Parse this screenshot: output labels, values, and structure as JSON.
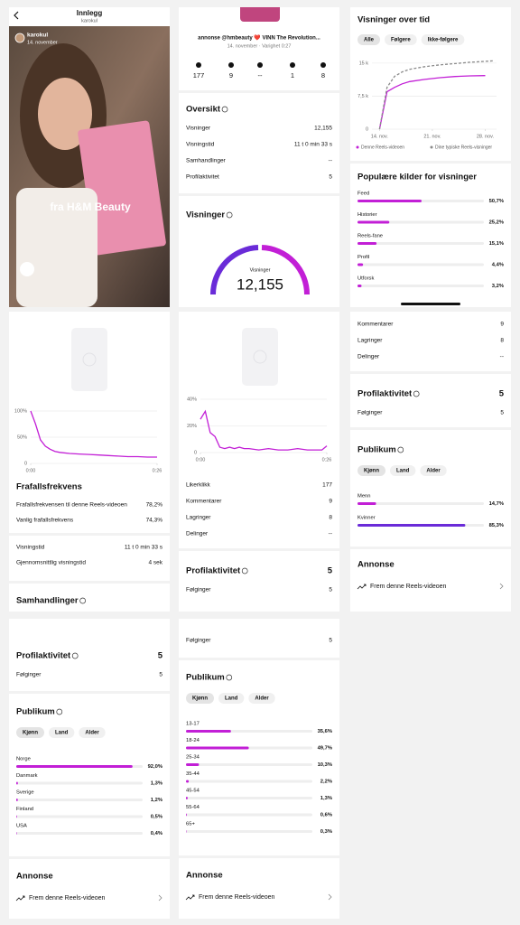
{
  "post": {
    "title": "Innlegg",
    "subtitle": "karokul",
    "user": "karokul",
    "date": "14. november",
    "overlay": "fra H&M Beauty"
  },
  "summary": {
    "caption": "annonse @hmbeauty ❤️ VINN The Revolution...",
    "meta": "14. november · Varighet 0:27",
    "stats": [
      "177",
      "9",
      "--",
      "1",
      "8"
    ],
    "overview_title": "Oversikt",
    "overview_rows": [
      {
        "label": "Visninger",
        "value": "12,155"
      },
      {
        "label": "Visningstid",
        "value": "11 t 0 min 33 s"
      },
      {
        "label": "Samhandlinger",
        "value": "--"
      },
      {
        "label": "Profilaktivitet",
        "value": "5"
      }
    ],
    "views_title": "Visninger",
    "donut_label": "Visninger",
    "donut_value": "12,155"
  },
  "views_over_time": {
    "title": "Visninger over tid",
    "filters": [
      "Alle",
      "Følgere",
      "Ikke-følgere"
    ],
    "sources_title": "Populære kilder for visninger",
    "sources": [
      {
        "label": "Feed",
        "value": 50.7,
        "value_label": "50,7%"
      },
      {
        "label": "Historier",
        "value": 25.2,
        "value_label": "25,2%"
      },
      {
        "label": "Reels-fane",
        "value": 15.1,
        "value_label": "15,1%"
      },
      {
        "label": "Profil",
        "value": 4.4,
        "value_label": "4,4%"
      },
      {
        "label": "Utforsk",
        "value": 3.2,
        "value_label": "3,2%"
      }
    ]
  },
  "retention": {
    "title": "Frafallsfrekvens",
    "rows": [
      {
        "label": "Frafallsfrekvensen til denne Reels-videoen",
        "value": "78,2%"
      },
      {
        "label": "Vanlig frafallsfrekvens",
        "value": "74,3%"
      }
    ],
    "time_rows": [
      {
        "label": "Visningstid",
        "value": "11 t 0 min 33 s"
      },
      {
        "label": "Gjennomsnittlig visningstid",
        "value": "4 sek"
      }
    ],
    "interactions_title": "Samhandlinger"
  },
  "interactions": {
    "rows": [
      {
        "label": "Likerklikk",
        "value": "177"
      },
      {
        "label": "Kommentarer",
        "value": "9"
      },
      {
        "label": "Lagringer",
        "value": "8"
      },
      {
        "label": "Delinger",
        "value": "--"
      }
    ],
    "profile_title": "Profilaktivitet",
    "profile_value": "5",
    "follows_label": "Følginger",
    "follows_value": "5"
  },
  "gender_panel": {
    "rows": [
      {
        "label": "Kommentarer",
        "value": "9"
      },
      {
        "label": "Lagringer",
        "value": "8"
      },
      {
        "label": "Delinger",
        "value": "--"
      }
    ],
    "profile_title": "Profilaktivitet",
    "profile_value": "5",
    "follows_label": "Følginger",
    "follows_value": "5",
    "audience_title": "Publikum",
    "filters": [
      "Kjønn",
      "Land",
      "Alder"
    ],
    "bars": [
      {
        "label": "Menn",
        "value": 14.7,
        "value_label": "14,7%"
      },
      {
        "label": "Kvinner",
        "value": 85.3,
        "value_label": "85,3%"
      }
    ],
    "ad_title": "Annonse",
    "ad_action": "Frem denne Reels-videoen"
  },
  "country_panel": {
    "profile_title": "Profilaktivitet",
    "profile_value": "5",
    "follows_label": "Følginger",
    "follows_value": "5",
    "audience_title": "Publikum",
    "filters": [
      "Kjønn",
      "Land",
      "Alder"
    ],
    "bars": [
      {
        "label": "Norge",
        "value": 92.0,
        "value_label": "92,0%"
      },
      {
        "label": "Danmark",
        "value": 1.3,
        "value_label": "1,3%"
      },
      {
        "label": "Sverige",
        "value": 1.2,
        "value_label": "1,2%"
      },
      {
        "label": "Finland",
        "value": 0.5,
        "value_label": "0,5%"
      },
      {
        "label": "USA",
        "value": 0.4,
        "value_label": "0,4%"
      }
    ],
    "ad_title": "Annonse",
    "ad_action": "Frem denne Reels-videoen"
  },
  "age_panel": {
    "follows_label": "Følginger",
    "follows_value": "5",
    "audience_title": "Publikum",
    "filters": [
      "Kjønn",
      "Land",
      "Alder"
    ],
    "bars": [
      {
        "label": "13-17",
        "value": 35.6,
        "value_label": "35,6%"
      },
      {
        "label": "18-24",
        "value": 49.7,
        "value_label": "49,7%"
      },
      {
        "label": "25-34",
        "value": 10.3,
        "value_label": "10,3%"
      },
      {
        "label": "35-44",
        "value": 2.2,
        "value_label": "2,2%"
      },
      {
        "label": "45-54",
        "value": 1.3,
        "value_label": "1,3%"
      },
      {
        "label": "55-64",
        "value": 0.6,
        "value_label": "0,6%"
      },
      {
        "label": "65+",
        "value": 0.3,
        "value_label": "0,3%"
      }
    ],
    "ad_title": "Annonse",
    "ad_action": "Frem denne Reels-videoen"
  },
  "chart_data": [
    {
      "type": "line",
      "x": [
        14,
        15,
        16,
        17,
        18,
        20,
        22,
        24,
        26,
        28,
        29
      ],
      "xlim": [
        13,
        29.5
      ],
      "xticks": [
        {
          "value": 14,
          "label": "14. nov."
        },
        {
          "value": 21,
          "label": "21. nov."
        },
        {
          "value": 28,
          "label": "28. nov."
        }
      ],
      "ylim": [
        0,
        16000
      ],
      "yticks": [
        {
          "value": 15000,
          "label": "15 k"
        },
        {
          "value": 7500,
          "label": "7,5 k"
        },
        0
      ],
      "grid": true,
      "series": [
        {
          "name": "Denne Reels-videoen",
          "color": "#c21fd6",
          "values": [
            0,
            8500,
            9500,
            10300,
            10800,
            11300,
            11700,
            11950,
            12100,
            12155,
            null
          ]
        },
        {
          "name": "Dine typiske Reels-visninger",
          "color": "#8a8a8a",
          "dashed": true,
          "values": [
            0,
            9500,
            12000,
            13000,
            13600,
            14200,
            14600,
            14900,
            15200,
            15400,
            15500
          ]
        }
      ]
    },
    {
      "type": "line",
      "x": [
        0,
        1,
        2,
        3,
        4,
        5,
        6,
        8,
        10,
        12,
        14,
        16,
        18,
        20,
        22,
        24,
        26
      ],
      "xlim": [
        0,
        26
      ],
      "xticks": [
        {
          "value": 0,
          "label": "0:00"
        },
        {
          "value": 26,
          "label": "0:26"
        }
      ],
      "ylim": [
        0,
        100
      ],
      "yticks": [
        {
          "value": 100,
          "label": "100%"
        },
        {
          "value": 50,
          "label": "50%"
        },
        0
      ],
      "grid": true,
      "color": "#c21fd6",
      "values": [
        100,
        75,
        45,
        33,
        27,
        23,
        21,
        19,
        18,
        17,
        16,
        15,
        14,
        13,
        13,
        12,
        12
      ]
    },
    {
      "type": "line",
      "x": [
        0,
        1,
        2,
        3,
        4,
        5,
        6,
        7,
        8,
        9,
        10,
        12,
        14,
        16,
        18,
        20,
        22,
        24,
        25,
        26
      ],
      "xlim": [
        0,
        26
      ],
      "xticks": [
        {
          "value": 0,
          "label": "0:00"
        },
        {
          "value": 26,
          "label": "0:26"
        }
      ],
      "ylim": [
        0,
        40
      ],
      "yticks": [
        {
          "value": 40,
          "label": "40%"
        },
        {
          "value": 20,
          "label": "20%"
        },
        0
      ],
      "grid": true,
      "color": "#c21fd6",
      "values": [
        25,
        31,
        15,
        12,
        4,
        3,
        4,
        3,
        4,
        3,
        3,
        2,
        3,
        2,
        2,
        3,
        2,
        2,
        2,
        5
      ]
    }
  ]
}
